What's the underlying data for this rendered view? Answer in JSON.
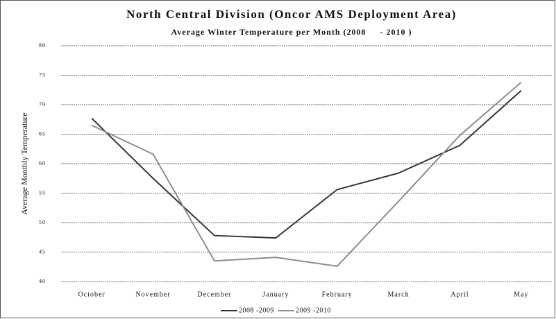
{
  "chart_data": {
    "type": "line",
    "title": "North Central Division (Oncor AMS Deployment Area)",
    "subtitle": "Average Winter Temperature per Month (2008     - 2010 )",
    "y_label": "Average Monthly Temperature",
    "categories": [
      "October",
      "November",
      "December",
      "January",
      "February",
      "March",
      "April",
      "May"
    ],
    "series": [
      {
        "name": "2008 -2009",
        "color": "#333333",
        "values": [
          67.7,
          57.5,
          47.8,
          47.4,
          55.6,
          58.4,
          63.1,
          72.4
        ]
      },
      {
        "name": "2009 -2010",
        "color": "#8c8c8c",
        "values": [
          66.5,
          61.6,
          43.5,
          44.1,
          42.6,
          53.6,
          64.8,
          73.8
        ]
      }
    ],
    "ylim": [
      40,
      80
    ],
    "yticks": [
      40,
      45,
      50,
      55,
      60,
      65,
      70,
      75,
      80
    ],
    "grid": true,
    "legend": "bottom"
  }
}
